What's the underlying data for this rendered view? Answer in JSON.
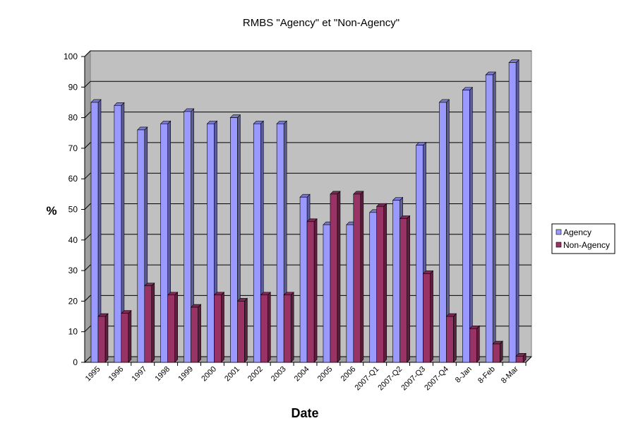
{
  "chart_data": {
    "type": "bar3d",
    "title": "RMBS \"Agency\" et \"Non-Agency\"",
    "y_label": "%",
    "x_label": "Date",
    "categories": [
      "1995",
      "1996",
      "1997",
      "1998",
      "1999",
      "2000",
      "2001",
      "2002",
      "2003",
      "2004",
      "2005",
      "2006",
      "2007-Q1",
      "2007-Q2",
      "2007-Q3",
      "2007-Q4",
      "8-Jan",
      "8-Feb",
      "8-Mar"
    ],
    "series": [
      {
        "name": "Agency",
        "color": "#9999ff",
        "values": [
          85,
          84,
          76,
          78,
          82,
          78,
          80,
          78,
          78,
          54,
          45,
          45,
          49,
          53,
          71,
          85,
          89,
          94,
          98
        ]
      },
      {
        "name": "Non-Agency",
        "color": "#993366",
        "values": [
          15,
          16,
          25,
          22,
          18,
          22,
          20,
          22,
          22,
          46,
          55,
          55,
          51,
          47,
          29,
          15,
          11,
          6,
          2
        ]
      }
    ],
    "ylim": [
      0,
      100
    ],
    "yticks": [
      0,
      10,
      20,
      30,
      40,
      50,
      60,
      70,
      80,
      90,
      100
    ],
    "grid": true,
    "legend": "right"
  }
}
